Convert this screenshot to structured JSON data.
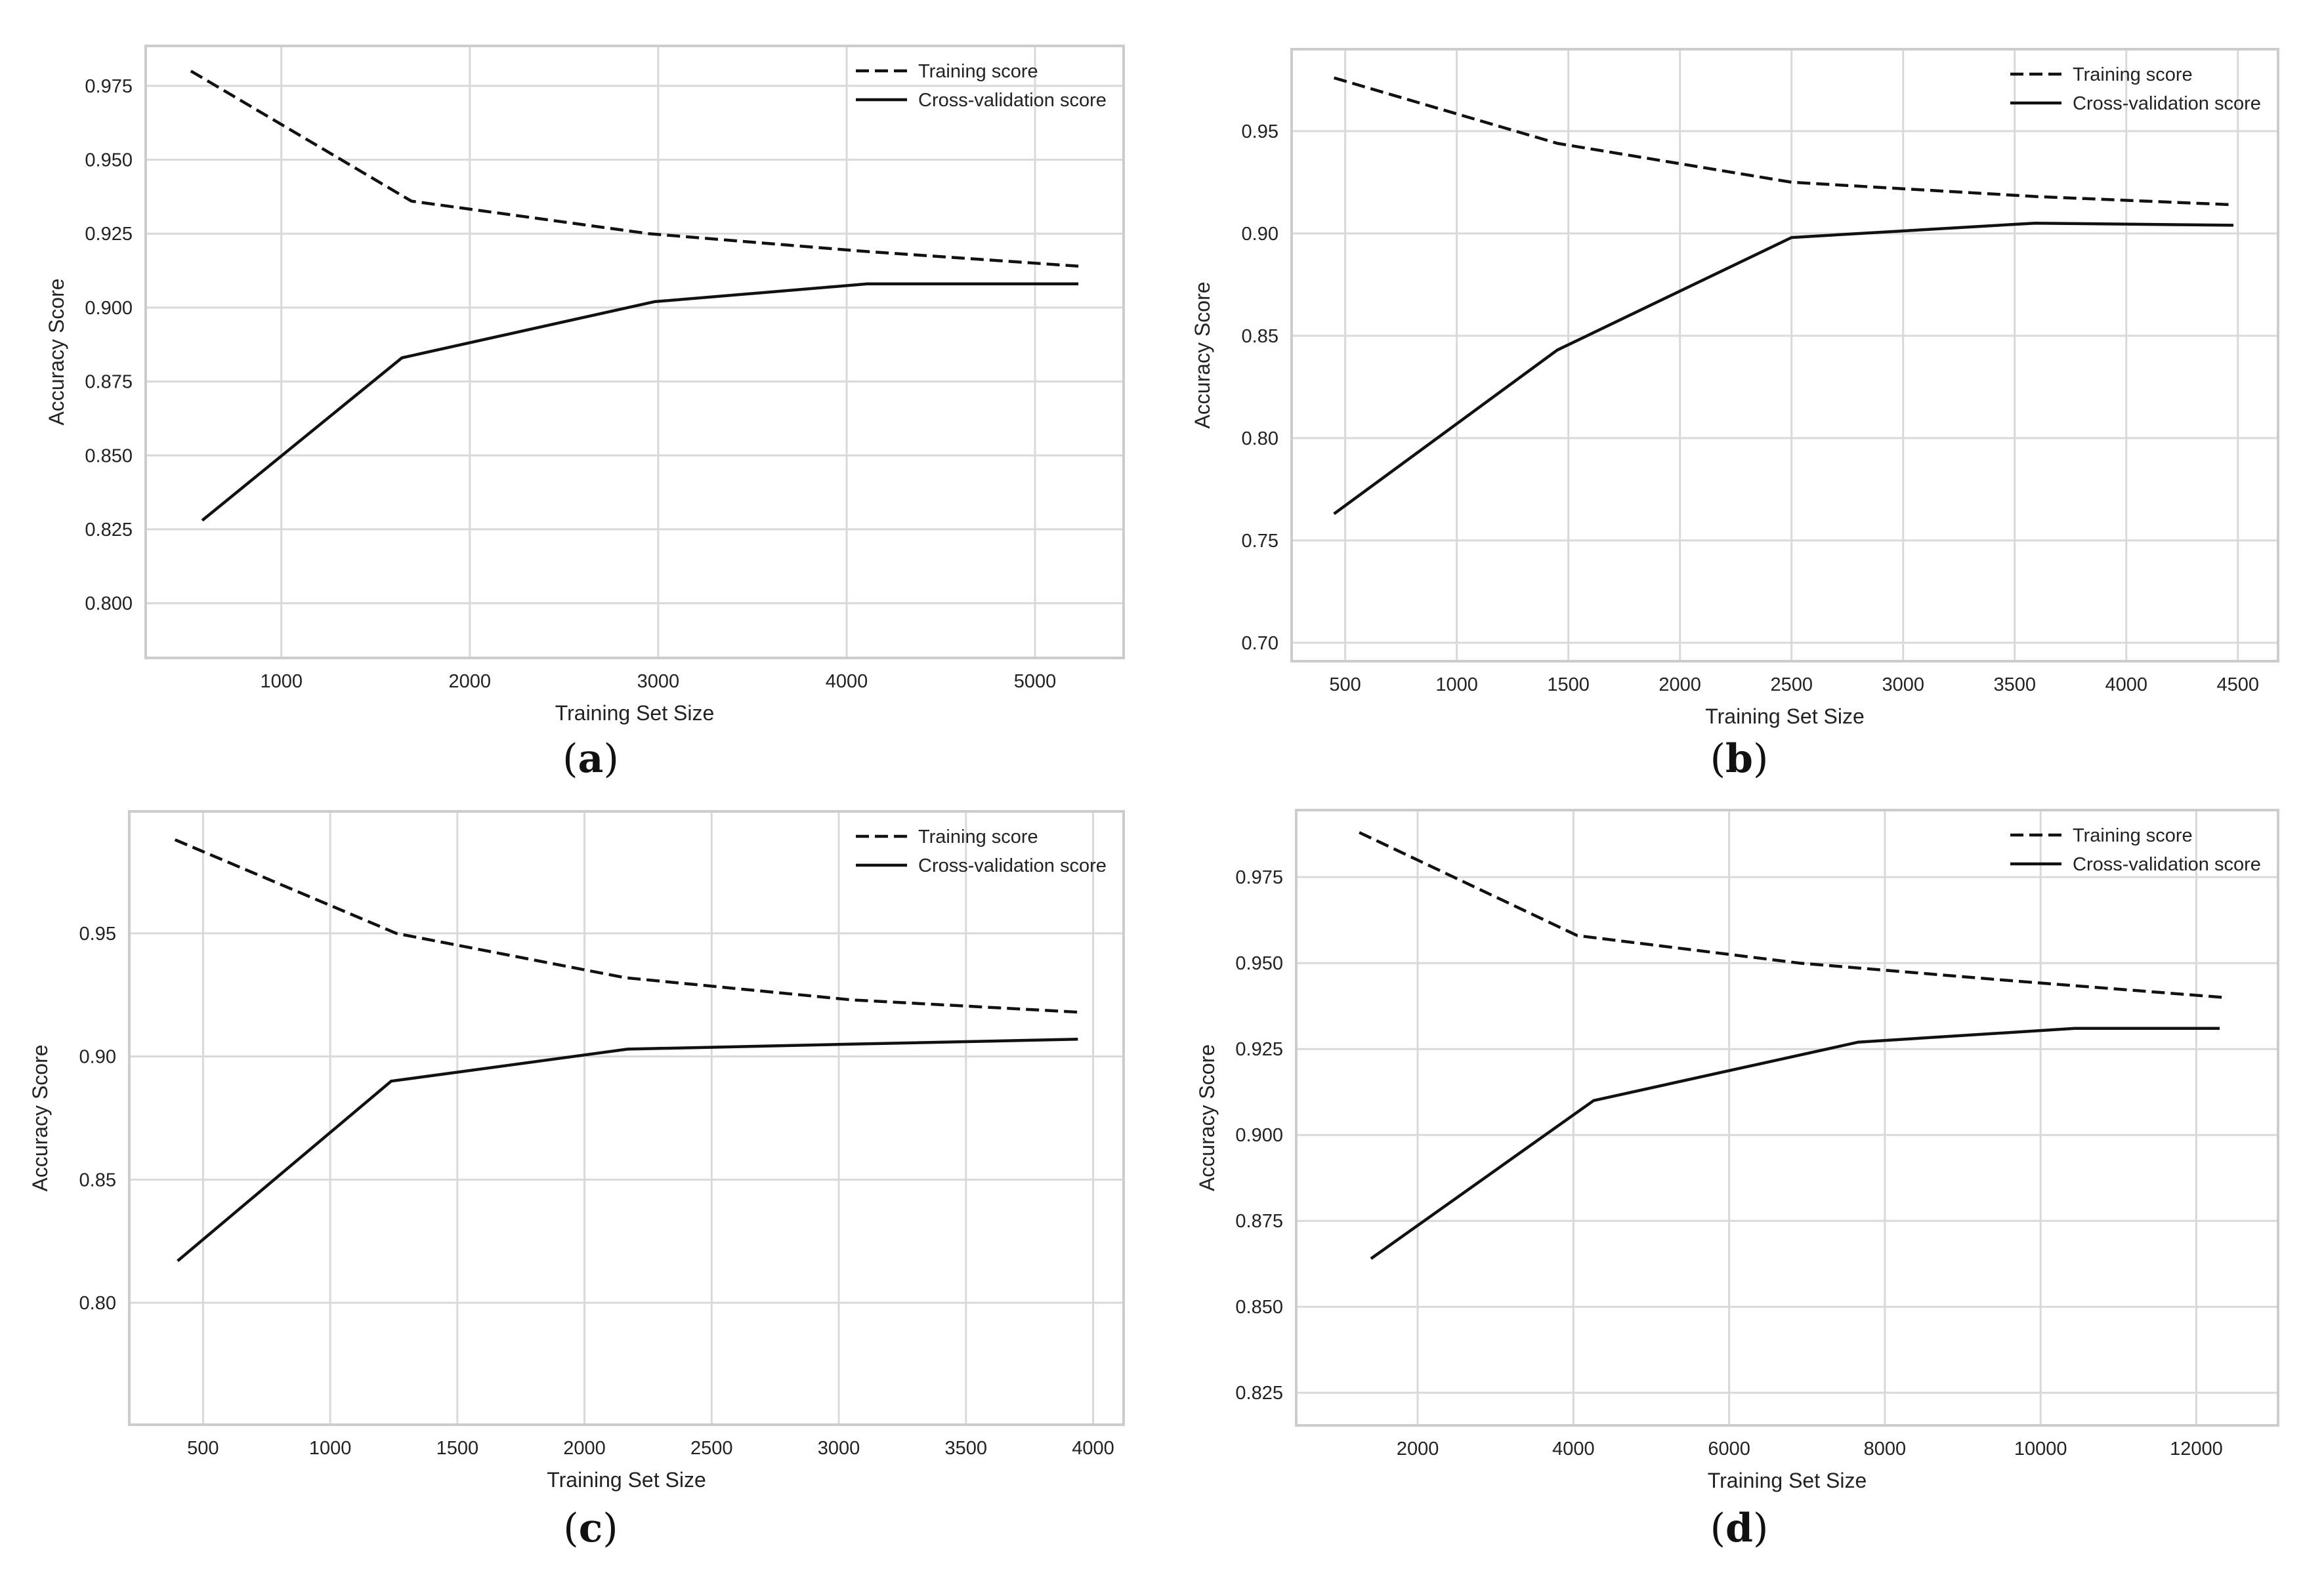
{
  "colors": {
    "line": "#111111",
    "grid": "#d9d9d9",
    "axis": "#cccccc",
    "text": "#222222"
  },
  "chart_data": [
    {
      "panel": "a",
      "caption_letter": "a",
      "type": "line",
      "xlabel": "Training Set Size",
      "ylabel": "Accuracy Score",
      "xlim": [
        280,
        5470
      ],
      "ylim": [
        0.7815,
        0.9885
      ],
      "xticks": [
        1000,
        2000,
        3000,
        4000,
        5000
      ],
      "xtick_labels": [
        "1000",
        "2000",
        "3000",
        "4000",
        "5000"
      ],
      "yticks": [
        0.8,
        0.825,
        0.85,
        0.875,
        0.9,
        0.925,
        0.95,
        0.975
      ],
      "ytick_labels": [
        "0.800",
        "0.825",
        "0.850",
        "0.875",
        "0.900",
        "0.925",
        "0.950",
        "0.975"
      ],
      "legend": {
        "position": "top-right",
        "entries": [
          "Training score",
          "Cross-validation score"
        ]
      },
      "series": [
        {
          "name": "Training score",
          "style": "dashed",
          "x": [
            520,
            1690,
            2950,
            4100,
            5230
          ],
          "y": [
            0.98,
            0.936,
            0.925,
            0.919,
            0.914
          ]
        },
        {
          "name": "Cross-validation score",
          "style": "solid",
          "x": [
            580,
            1640,
            2980,
            4110,
            5230
          ],
          "y": [
            0.828,
            0.883,
            0.902,
            0.908,
            0.908
          ]
        }
      ]
    },
    {
      "panel": "b",
      "caption_letter": "b",
      "type": "line",
      "xlabel": "Training Set Size",
      "ylabel": "Accuracy Score",
      "xlim": [
        260,
        4680
      ],
      "ylim": [
        0.691,
        0.99
      ],
      "xticks": [
        500,
        1000,
        1500,
        2000,
        2500,
        3000,
        3500,
        4000,
        4500
      ],
      "xtick_labels": [
        "500",
        "1000",
        "1500",
        "2000",
        "2500",
        "3000",
        "3500",
        "4000",
        "4500"
      ],
      "yticks": [
        0.7,
        0.75,
        0.8,
        0.85,
        0.9,
        0.95
      ],
      "ytick_labels": [
        "0.70",
        "0.75",
        "0.80",
        "0.85",
        "0.90",
        "0.95"
      ],
      "legend": {
        "position": "top-right",
        "entries": [
          "Training score",
          "Cross-validation score"
        ]
      },
      "series": [
        {
          "name": "Training score",
          "style": "dashed",
          "x": [
            450,
            1450,
            2500,
            3600,
            4480
          ],
          "y": [
            0.976,
            0.944,
            0.925,
            0.918,
            0.914
          ]
        },
        {
          "name": "Cross-validation score",
          "style": "solid",
          "x": [
            450,
            1450,
            2500,
            3590,
            4480
          ],
          "y": [
            0.763,
            0.843,
            0.898,
            0.905,
            0.904
          ]
        }
      ]
    },
    {
      "panel": "c",
      "caption_letter": "c",
      "type": "line",
      "xlabel": "Training Set Size",
      "ylabel": "Accuracy Score",
      "xlim": [
        210,
        4120
      ],
      "ylim": [
        0.7505,
        0.9995
      ],
      "xticks": [
        500,
        1000,
        1500,
        2000,
        2500,
        3000,
        3500,
        4000
      ],
      "xtick_labels": [
        "500",
        "1000",
        "1500",
        "2000",
        "2500",
        "3000",
        "3500",
        "4000"
      ],
      "yticks": [
        0.8,
        0.85,
        0.9,
        0.95
      ],
      "ytick_labels": [
        "0.80",
        "0.85",
        "0.90",
        "0.95"
      ],
      "legend": {
        "position": "top-right",
        "entries": [
          "Training score",
          "Cross-validation score"
        ]
      },
      "series": [
        {
          "name": "Training score",
          "style": "dashed",
          "x": [
            390,
            1260,
            2160,
            3050,
            3940
          ],
          "y": [
            0.988,
            0.95,
            0.932,
            0.923,
            0.918
          ]
        },
        {
          "name": "Cross-validation score",
          "style": "solid",
          "x": [
            400,
            1240,
            2170,
            3050,
            3940
          ],
          "y": [
            0.817,
            0.89,
            0.903,
            0.905,
            0.907
          ]
        }
      ]
    },
    {
      "panel": "d",
      "caption_letter": "d",
      "type": "line",
      "xlabel": "Training Set Size",
      "ylabel": "Accuracy Score",
      "xlim": [
        440,
        13050
      ],
      "ylim": [
        0.8155,
        0.9945
      ],
      "xticks": [
        2000,
        4000,
        6000,
        8000,
        10000,
        12000
      ],
      "xtick_labels": [
        "2000",
        "4000",
        "6000",
        "8000",
        "10000",
        "12000"
      ],
      "yticks": [
        0.825,
        0.85,
        0.875,
        0.9,
        0.925,
        0.95,
        0.975
      ],
      "ytick_labels": [
        "0.825",
        "0.850",
        "0.875",
        "0.900",
        "0.925",
        "0.950",
        "0.975"
      ],
      "legend": {
        "position": "top-right",
        "entries": [
          "Training score",
          "Cross-validation score"
        ]
      },
      "series": [
        {
          "name": "Training score",
          "style": "dashed",
          "x": [
            1250,
            4050,
            6900,
            9550,
            12350
          ],
          "y": [
            0.988,
            0.958,
            0.95,
            0.945,
            0.94
          ]
        },
        {
          "name": "Cross-validation score",
          "style": "solid",
          "x": [
            1400,
            4260,
            7660,
            10440,
            12300
          ],
          "y": [
            0.864,
            0.91,
            0.927,
            0.931,
            0.931
          ]
        }
      ]
    }
  ]
}
